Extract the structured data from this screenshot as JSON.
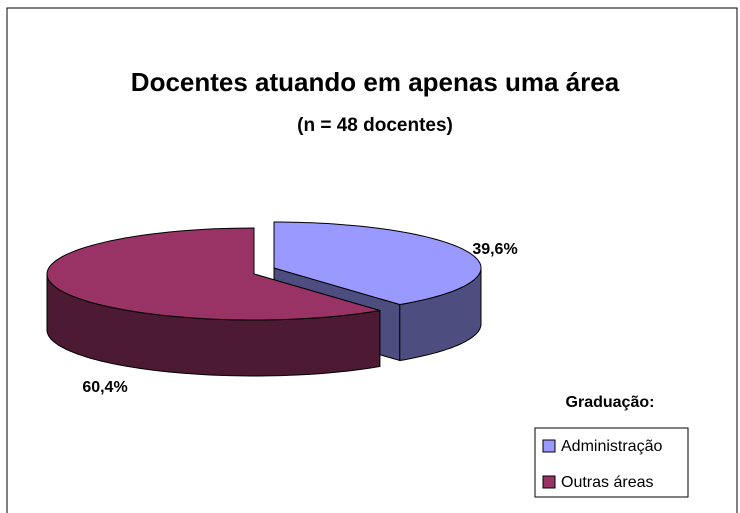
{
  "chart_data": {
    "type": "pie",
    "title": "Docentes atuando em apenas uma área",
    "subtitle": "(n = 48 docentes)",
    "legend_title": "Graduação:",
    "categories": [
      "Administração",
      "Outras áreas"
    ],
    "values": [
      39.6,
      60.4
    ],
    "value_labels": [
      "39,6%",
      "60,4%"
    ],
    "colors": [
      "#9999ff",
      "#993366"
    ],
    "legend": "bottom-right"
  }
}
